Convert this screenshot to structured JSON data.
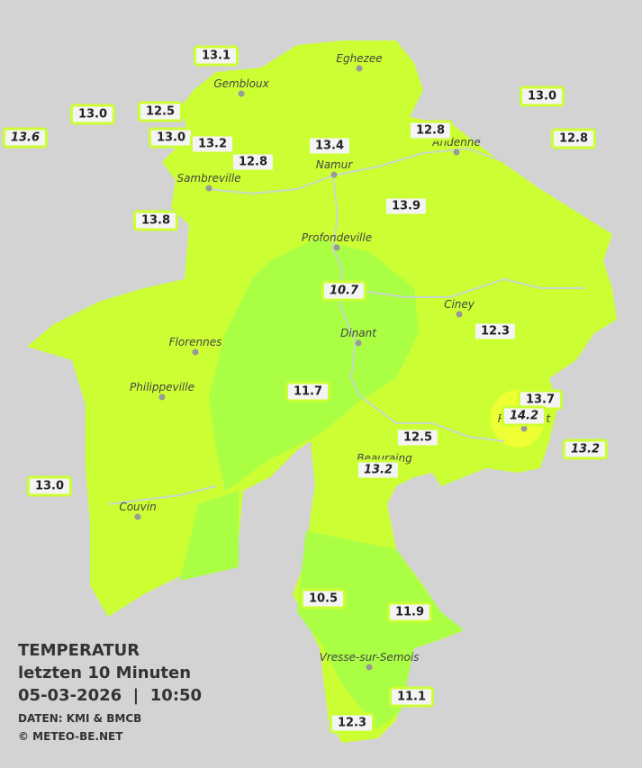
{
  "legend": {
    "title": "TEMPERATUR",
    "period": "letzten 10 Minuten",
    "datetime": "05-03-2026  |  10:50",
    "source": "DATEN: KMI & BMCB",
    "copyright": "© METEO-BE.NET"
  },
  "cities": [
    "Eghezee",
    "Gembloux",
    "Andenne",
    "Namur",
    "Sambreville",
    "Profondeville",
    "Ciney",
    "Florennes",
    "Dinant",
    "Philippeville",
    "Rochefort",
    "Beauraing",
    "Couvin",
    "Vresse-sur-Semois"
  ],
  "stations": [
    {
      "value": "13.1"
    },
    {
      "value": "12.5"
    },
    {
      "value": "13.0"
    },
    {
      "value": "13.6",
      "italic": true
    },
    {
      "value": "13.0"
    },
    {
      "value": "13.2"
    },
    {
      "value": "12.8"
    },
    {
      "value": "13.4"
    },
    {
      "value": "12.8"
    },
    {
      "value": "13.0"
    },
    {
      "value": "12.8"
    },
    {
      "value": "13.8"
    },
    {
      "value": "13.9"
    },
    {
      "value": "10.7",
      "italic": true
    },
    {
      "value": "12.3"
    },
    {
      "value": "11.7"
    },
    {
      "value": "13.7"
    },
    {
      "value": "14.2",
      "italic": true
    },
    {
      "value": "12.5"
    },
    {
      "value": "13.2",
      "italic": true
    },
    {
      "value": "13.2",
      "italic": true
    },
    {
      "value": "13.0"
    },
    {
      "value": "10.5"
    },
    {
      "value": "11.9"
    },
    {
      "value": "11.1"
    },
    {
      "value": "12.3"
    }
  ]
}
